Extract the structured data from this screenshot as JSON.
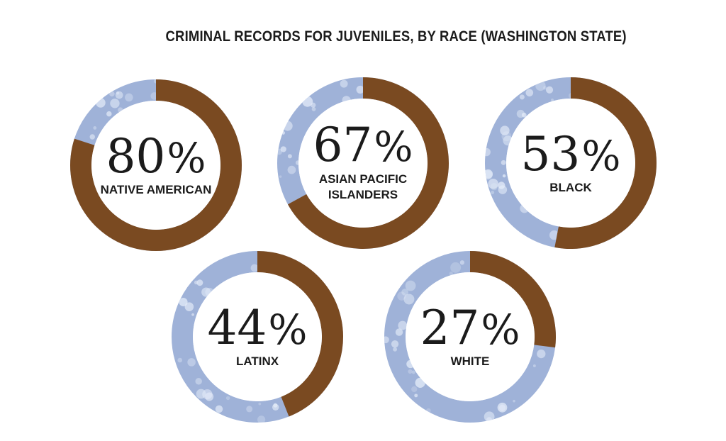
{
  "title": "CRIMINAL RECORDS FOR JUVENILES, BY RACE (WASHINGTON STATE)",
  "colors": {
    "filled": "#7a4a21",
    "remainder": "#9fb2d8",
    "sparkle": "#e6edf9",
    "inner": "#ffffff",
    "text": "#1b1b1b"
  },
  "chart_data": {
    "type": "pie",
    "title": "CRIMINAL RECORDS FOR JUVENILES, BY RACE (WASHINGTON STATE)",
    "categories": [
      "NATIVE AMERICAN",
      "ASIAN PACIFIC ISLANDERS",
      "BLACK",
      "LATINX",
      "WHITE"
    ],
    "values": [
      80,
      67,
      53,
      44,
      27
    ],
    "unit": "%",
    "charts": [
      {
        "label_lines": [
          "NATIVE AMERICAN"
        ],
        "value": 80,
        "pct_text": "80",
        "sign": "%"
      },
      {
        "label_lines": [
          "ASIAN PACIFIC",
          "ISLANDERS"
        ],
        "value": 67,
        "pct_text": "67",
        "sign": "%"
      },
      {
        "label_lines": [
          "BLACK"
        ],
        "value": 53,
        "pct_text": "53",
        "sign": "%"
      },
      {
        "label_lines": [
          "LATINX"
        ],
        "value": 44,
        "pct_text": "44",
        "sign": "%"
      },
      {
        "label_lines": [
          "WHITE"
        ],
        "value": 27,
        "pct_text": "27",
        "sign": "%"
      }
    ]
  }
}
